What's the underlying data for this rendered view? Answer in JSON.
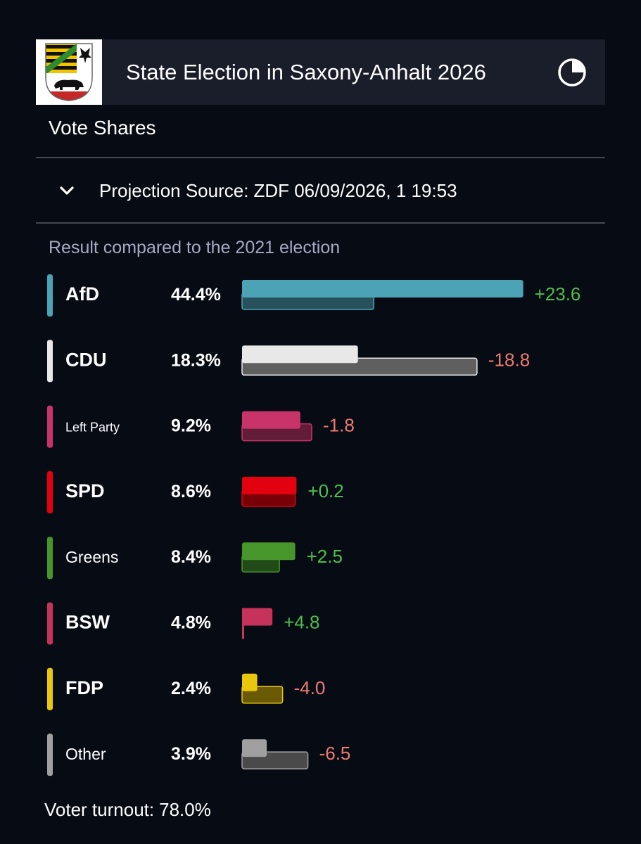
{
  "header": {
    "title": "State Election in Saxony-Anhalt 2026"
  },
  "section": {
    "title": "Vote Shares"
  },
  "source": {
    "label": "Projection Source:",
    "value": "ZDF 06/09/2026, 1 19:53"
  },
  "comparison_label": "Result compared to the 2021 election",
  "turnout": {
    "label": "Voter turnout:",
    "value": "78.0%"
  },
  "colors": {
    "background": "#070b14",
    "header_bg": "#1a1d2a",
    "gain": "#4fbf4f",
    "loss": "#ee7b73"
  },
  "icons": {
    "header": "saxony-anhalt-crest",
    "refresh": "pie-clock-icon",
    "expand": "chevron-down-icon"
  },
  "chart_data": {
    "type": "bar",
    "orientation": "horizontal",
    "title": "",
    "categories": [
      "AfD",
      "CDU",
      "Left Party",
      "SPD",
      "Greens",
      "BSW",
      "FDP",
      "Other"
    ],
    "series": [
      {
        "name": "2026",
        "values": [
          44.4,
          18.3,
          9.2,
          8.6,
          8.4,
          4.8,
          2.4,
          3.9
        ],
        "labels": [
          "44.4%",
          "18.3%",
          "9.2%",
          "8.6%",
          "8.4%",
          "4.8%",
          "2.4%",
          "3.9%"
        ]
      },
      {
        "name": "2021",
        "values": [
          20.8,
          37.1,
          11.0,
          8.4,
          5.9,
          0,
          6.4,
          10.4
        ]
      }
    ],
    "changes": [
      "+23.6",
      "-18.8",
      "-1.8",
      "+0.2",
      "+2.5",
      "+4.8",
      "-4.0",
      "-6.5"
    ],
    "party_colors": [
      "#4ba3b5",
      "#e8e8e8",
      "#c8336a",
      "#e3000f",
      "#46962b",
      "#c6335a",
      "#e9c70d",
      "#a0a0a0"
    ],
    "previous_colors": [
      "#27525c",
      "#5f5f5f",
      "#621c37",
      "#780007",
      "#214a16",
      "#5e1a2b",
      "#6b5a05",
      "#4a4a4a"
    ],
    "legend": "none",
    "grid": false
  }
}
